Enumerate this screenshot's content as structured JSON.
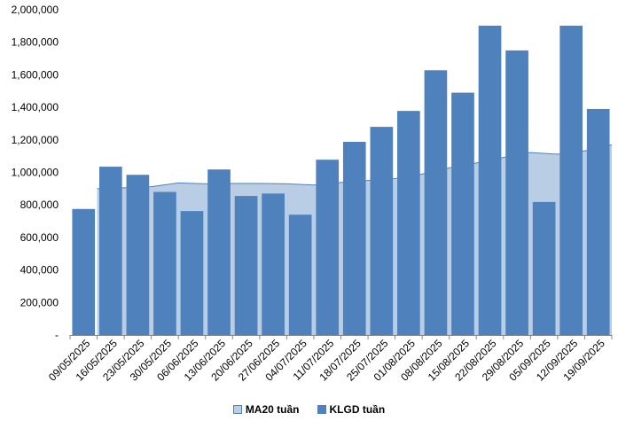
{
  "chart_data": {
    "type": "bar",
    "categories": [
      "09/05/2025",
      "16/05/2025",
      "23/05/2025",
      "30/05/2025",
      "06/06/2025",
      "13/06/2025",
      "20/06/2025",
      "27/06/2025",
      "04/07/2025",
      "11/07/2025",
      "18/07/2025",
      "25/07/2025",
      "01/08/2025",
      "08/08/2025",
      "15/08/2025",
      "22/08/2025",
      "29/08/2025",
      "05/09/2025",
      "12/09/2025",
      "19/09/2025"
    ],
    "series": [
      {
        "name": "KLGD tuần",
        "kind": "bar",
        "color": "#4F81BD",
        "values": [
          775000,
          1035000,
          985000,
          880000,
          762000,
          1018000,
          855000,
          870000,
          740000,
          1078000,
          1188000,
          1280000,
          1378000,
          1628000,
          1490000,
          1902000,
          1750000,
          818000,
          1902000,
          1390000
        ]
      },
      {
        "name": "MA20 tuần",
        "kind": "area",
        "color": "#B9CDE5",
        "line_color": "#4F81BD",
        "values": [
          900000,
          905000,
          912000,
          935000,
          930000,
          932000,
          932000,
          930000,
          922000,
          938000,
          950000,
          962000,
          990000,
          1028000,
          1058000,
          1092000,
          1122000,
          1112000,
          1132000,
          1170000
        ]
      }
    ],
    "y_ticks": [
      0,
      200000,
      400000,
      600000,
      800000,
      1000000,
      1200000,
      1400000,
      1600000,
      1800000,
      2000000
    ],
    "y_tick_labels": [
      "-",
      "200,000",
      "400,000",
      "600,000",
      "800,000",
      "1,000,000",
      "1,200,000",
      "1,400,000",
      "1,600,000",
      "1,800,000",
      "2,000,000"
    ],
    "ylim": [
      0,
      2000000
    ],
    "grid": false,
    "legend_position": "bottom",
    "title": "",
    "xlabel": "",
    "ylabel": ""
  },
  "legend": {
    "items": [
      {
        "label": "MA20 tuần",
        "color": "#B9CDE5"
      },
      {
        "label": "KLGD tuần",
        "color": "#4F81BD"
      }
    ]
  }
}
